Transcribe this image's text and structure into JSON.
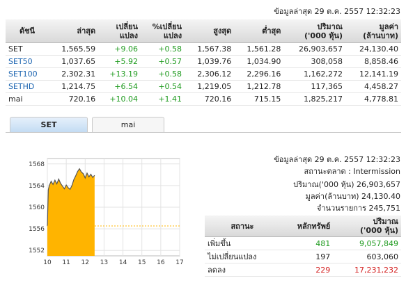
{
  "updated_text": "ข้อมูลล่าสุด 29 ต.ค. 2557 12:32:23",
  "index_table": {
    "headers": [
      "ดัชนี",
      "ล่าสุด",
      "เปลี่ยน\nแปลง",
      "%เปลี่ยน\nแปลง",
      "สูงสุด",
      "ต่ำสุด",
      "ปริมาณ\n('000 หุ้น)",
      "มูลค่า\n(ล้านบาท)"
    ],
    "rows": [
      {
        "name": "SET",
        "last": "1,565.59",
        "change": "+9.06",
        "pct": "+0.58",
        "high": "1,567.38",
        "low": "1,561.28",
        "volume": "26,903,657",
        "value": "24,130.40"
      },
      {
        "name": "SET50",
        "last": "1,037.65",
        "change": "+5.92",
        "pct": "+0.57",
        "high": "1,039.76",
        "low": "1,034.90",
        "volume": "308,058",
        "value": "8,858.46"
      },
      {
        "name": "SET100",
        "last": "2,302.31",
        "change": "+13.19",
        "pct": "+0.58",
        "high": "2,306.12",
        "low": "2,296.16",
        "volume": "1,162,272",
        "value": "12,141.19"
      },
      {
        "name": "SETHD",
        "last": "1,214.75",
        "change": "+6.54",
        "pct": "+0.54",
        "high": "1,219.05",
        "low": "1,212.78",
        "volume": "117,365",
        "value": "4,458.27"
      },
      {
        "name": "mai",
        "last": "720.16",
        "change": "+10.04",
        "pct": "+1.41",
        "high": "720.16",
        "low": "715.15",
        "volume": "1,825,217",
        "value": "4,778.81"
      }
    ]
  },
  "tabs": [
    {
      "label": "SET"
    },
    {
      "label": "mai"
    }
  ],
  "chart": {
    "y_ticks": [
      "1568",
      "1564",
      "1560",
      "1556",
      "1552"
    ],
    "x_ticks": [
      "10",
      "11",
      "12",
      "13",
      "14",
      "15",
      "16",
      "17"
    ],
    "ylim": [
      1551,
      1569
    ],
    "xlim": [
      10,
      17
    ],
    "prev_close": 1556.53,
    "colors": {
      "fill": "#ffb400",
      "line": "#555555",
      "prev": "#ffb400"
    },
    "series": [
      [
        10.0,
        1556.5
      ],
      [
        10.05,
        1563.2
      ],
      [
        10.1,
        1564.0
      ],
      [
        10.2,
        1564.8
      ],
      [
        10.3,
        1564.2
      ],
      [
        10.4,
        1565.0
      ],
      [
        10.5,
        1564.3
      ],
      [
        10.6,
        1565.2
      ],
      [
        10.7,
        1564.4
      ],
      [
        10.8,
        1563.9
      ],
      [
        10.9,
        1563.4
      ],
      [
        11.0,
        1564.1
      ],
      [
        11.1,
        1563.6
      ],
      [
        11.2,
        1563.3
      ],
      [
        11.3,
        1564.0
      ],
      [
        11.4,
        1565.1
      ],
      [
        11.5,
        1565.8
      ],
      [
        11.6,
        1566.6
      ],
      [
        11.7,
        1567.1
      ],
      [
        11.8,
        1566.5
      ],
      [
        11.9,
        1566.2
      ],
      [
        12.0,
        1565.4
      ],
      [
        12.1,
        1566.3
      ],
      [
        12.2,
        1565.6
      ],
      [
        12.3,
        1566.1
      ],
      [
        12.4,
        1565.5
      ],
      [
        12.5,
        1565.9
      ]
    ]
  },
  "info": {
    "status": "สถานะตลาด : Intermission",
    "volume": "ปริมาณ('000 หุ้น) 26,903,657",
    "value": "มูลค่า(ล้านบาท) 24,130.40",
    "deals": "จำนวนรายการ 245,751"
  },
  "breadth": {
    "headers": [
      "สถานะ",
      "หลักทรัพย์",
      "ปริมาณ\n('000 หุ้น)"
    ],
    "rows": [
      {
        "label": "เพิ่มขึ้น",
        "count": "481",
        "volume": "9,057,849",
        "cls": "up"
      },
      {
        "label": "ไม่เปลี่ยนแปลง",
        "count": "197",
        "volume": "603,060",
        "cls": ""
      },
      {
        "label": "ลดลง",
        "count": "229",
        "volume": "17,231,232",
        "cls": "down"
      }
    ]
  }
}
